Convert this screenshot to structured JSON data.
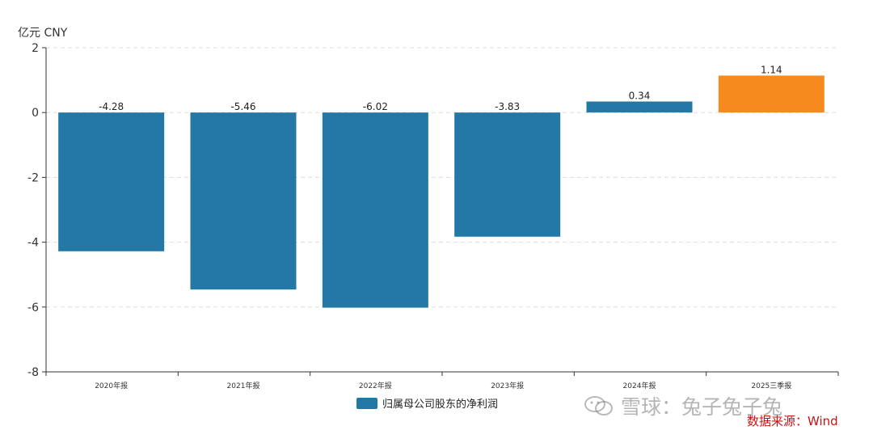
{
  "unit_label": "亿元  CNY",
  "legend": {
    "label": "归属母公司股东的净利润",
    "color": "#2478a5"
  },
  "watermark": {
    "text": "雪球：兔子兔子兔"
  },
  "source": "数据来源：Wind",
  "chart_data": {
    "type": "bar",
    "categories": [
      "2020年报",
      "2021年报",
      "2022年报",
      "2023年报",
      "2024年报",
      "2025三季报"
    ],
    "series": [
      {
        "name": "归属母公司股东的净利润",
        "values": [
          -4.28,
          -5.46,
          -6.02,
          -3.83,
          0.34,
          1.14
        ],
        "data_labels": [
          "-4.28",
          "-5.46",
          "-6.02",
          "-3.83",
          "0.34",
          "1.14"
        ],
        "colors": [
          "#2478a5",
          "#2478a5",
          "#2478a5",
          "#2478a5",
          "#2478a5",
          "#f68a1f"
        ]
      }
    ],
    "ylim": [
      -8,
      2
    ],
    "yticks": [
      2,
      0,
      -2,
      -4,
      -6,
      -8
    ],
    "ytick_labels": [
      "2",
      "0",
      "-2",
      "-4",
      "-6",
      "-8"
    ],
    "grid": true,
    "legend_position": "bottom-center"
  }
}
